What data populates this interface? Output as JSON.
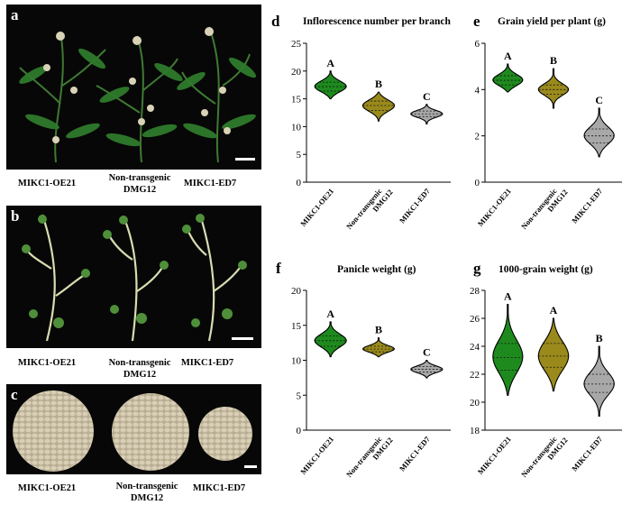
{
  "photos": {
    "a": {
      "letter": "a",
      "captions": [
        "MIKC1-OE21",
        "Non-transgenic",
        "DMG12",
        "MIKC1-ED7"
      ]
    },
    "b": {
      "letter": "b",
      "captions": [
        "MIKC1-OE21",
        "Non-transgenic",
        "DMG12",
        "MIKC1-ED7"
      ]
    },
    "c": {
      "letter": "c",
      "captions": [
        "MIKC1-OE21",
        "Non-transgenic",
        "DMG12",
        "MIKC1-ED7"
      ]
    }
  },
  "colors": {
    "oe": "#1e8a1e",
    "nt": "#9a8a1c",
    "ed": "#a8a8a8",
    "photo_bg": "#070707",
    "seed": "#cfc4a8"
  },
  "chart_data": [
    {
      "letter": "d",
      "type": "violin",
      "title": "Inflorescence number per branch",
      "categories": [
        "MIKC1-OE21",
        "Non-transgenic DMG12",
        "MIKC1-ED7"
      ],
      "ylim": [
        0,
        25
      ],
      "yticks": [
        "0",
        "5",
        "10",
        "15",
        "20",
        "25"
      ],
      "groups": [
        {
          "letter": "A",
          "min": 15.0,
          "max": 20.0,
          "median": 17.2,
          "q1": 16.4,
          "q3": 18.0
        },
        {
          "letter": "B",
          "min": 11.0,
          "max": 16.2,
          "median": 13.8,
          "q1": 12.9,
          "q3": 14.6
        },
        {
          "letter": "C",
          "min": 10.5,
          "max": 14.0,
          "median": 12.3,
          "q1": 11.8,
          "q3": 12.8
        }
      ]
    },
    {
      "letter": "e",
      "type": "violin",
      "title": "Grain yield per plant (g)",
      "categories": [
        "MIKC1-OE21",
        "Non-transgenic DMG12",
        "MIKC1-ED7"
      ],
      "ylim": [
        0,
        6
      ],
      "yticks": [
        "0",
        "2",
        "4",
        "6"
      ],
      "groups": [
        {
          "letter": "A",
          "min": 3.9,
          "max": 5.1,
          "median": 4.4,
          "q1": 4.2,
          "q3": 4.6
        },
        {
          "letter": "B",
          "min": 3.2,
          "max": 4.9,
          "median": 4.0,
          "q1": 3.8,
          "q3": 4.2
        },
        {
          "letter": "C",
          "min": 1.1,
          "max": 3.2,
          "median": 2.0,
          "q1": 1.7,
          "q3": 2.3
        }
      ]
    },
    {
      "letter": "f",
      "type": "violin",
      "title": "Panicle weight (g)",
      "categories": [
        "MIKC1-OE21",
        "Non-transgenic DMG12",
        "MIKC1-ED7"
      ],
      "ylim": [
        0,
        20
      ],
      "yticks": [
        "0",
        "5",
        "10",
        "15",
        "20"
      ],
      "groups": [
        {
          "letter": "A",
          "min": 10.5,
          "max": 15.5,
          "median": 12.8,
          "q1": 12.0,
          "q3": 13.5
        },
        {
          "letter": "B",
          "min": 10.5,
          "max": 13.2,
          "median": 11.6,
          "q1": 11.2,
          "q3": 12.0
        },
        {
          "letter": "C",
          "min": 7.5,
          "max": 10.0,
          "median": 8.7,
          "q1": 8.3,
          "q3": 9.1
        }
      ]
    },
    {
      "letter": "g",
      "type": "violin",
      "title": "1000-grain weight (g)",
      "categories": [
        "MIKC1-OE21",
        "Non-transgenic DMG12",
        "MIKC1-ED7"
      ],
      "ylim": [
        18,
        28
      ],
      "yticks": [
        "18",
        "20",
        "22",
        "24",
        "26",
        "28"
      ],
      "groups": [
        {
          "letter": "A",
          "min": 20.5,
          "max": 27.0,
          "median": 23.2,
          "q1": 22.3,
          "q3": 24.2
        },
        {
          "letter": "A",
          "min": 20.8,
          "max": 26.0,
          "median": 23.3,
          "q1": 22.5,
          "q3": 24.2
        },
        {
          "letter": "B",
          "min": 19.0,
          "max": 24.0,
          "median": 21.3,
          "q1": 20.7,
          "q3": 22.0
        }
      ]
    }
  ]
}
